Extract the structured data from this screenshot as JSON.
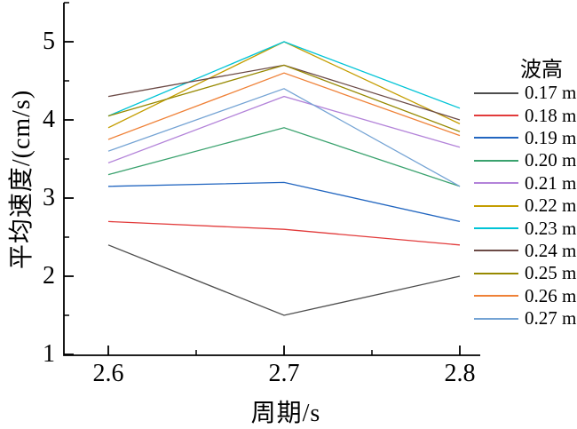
{
  "chart_data": {
    "type": "line",
    "title": "",
    "xlabel": "周期/s",
    "ylabel": "平均速度/(cm/s)",
    "legend_title": "波高",
    "legend_position": "right",
    "grid": false,
    "markers": false,
    "x": [
      2.6,
      2.7,
      2.8
    ],
    "x_tick_labels": [
      "2.6",
      "2.7",
      "2.8"
    ],
    "x_minor_ticks": [
      2.65,
      2.75
    ],
    "y_tick_labels": [
      "1",
      "2",
      "3",
      "4",
      "5"
    ],
    "y_major_ticks": [
      1,
      2,
      3,
      4,
      5
    ],
    "y_minor_ticks": [
      1.5,
      2.5,
      3.5,
      4.5,
      5.5
    ],
    "ylim": [
      1,
      5.5
    ],
    "axis_color": "#000000",
    "series": [
      {
        "name": "0.17 m",
        "color": "#4d4d4d",
        "values": [
          2.4,
          1.5,
          2.0
        ]
      },
      {
        "name": "0.18 m",
        "color": "#e23b3b",
        "values": [
          2.7,
          2.6,
          2.4
        ]
      },
      {
        "name": "0.19 m",
        "color": "#2266c0",
        "values": [
          3.15,
          3.2,
          2.7
        ]
      },
      {
        "name": "0.20 m",
        "color": "#3aa26e",
        "values": [
          3.3,
          3.9,
          3.15
        ]
      },
      {
        "name": "0.21 m",
        "color": "#b383d9",
        "values": [
          3.45,
          4.3,
          3.65
        ]
      },
      {
        "name": "0.22 m",
        "color": "#c49d00",
        "values": [
          3.9,
          5.0,
          3.95
        ]
      },
      {
        "name": "0.23 m",
        "color": "#00c4d6",
        "values": [
          4.05,
          5.0,
          4.15
        ]
      },
      {
        "name": "0.24 m",
        "color": "#6c4b47",
        "values": [
          4.3,
          4.7,
          4.0
        ]
      },
      {
        "name": "0.25 m",
        "color": "#978900",
        "values": [
          4.05,
          4.7,
          3.85
        ]
      },
      {
        "name": "0.26 m",
        "color": "#ef8137",
        "values": [
          3.75,
          4.6,
          3.8
        ]
      },
      {
        "name": "0.27 m",
        "color": "#74a3d4",
        "values": [
          3.6,
          4.4,
          3.15
        ]
      }
    ]
  }
}
